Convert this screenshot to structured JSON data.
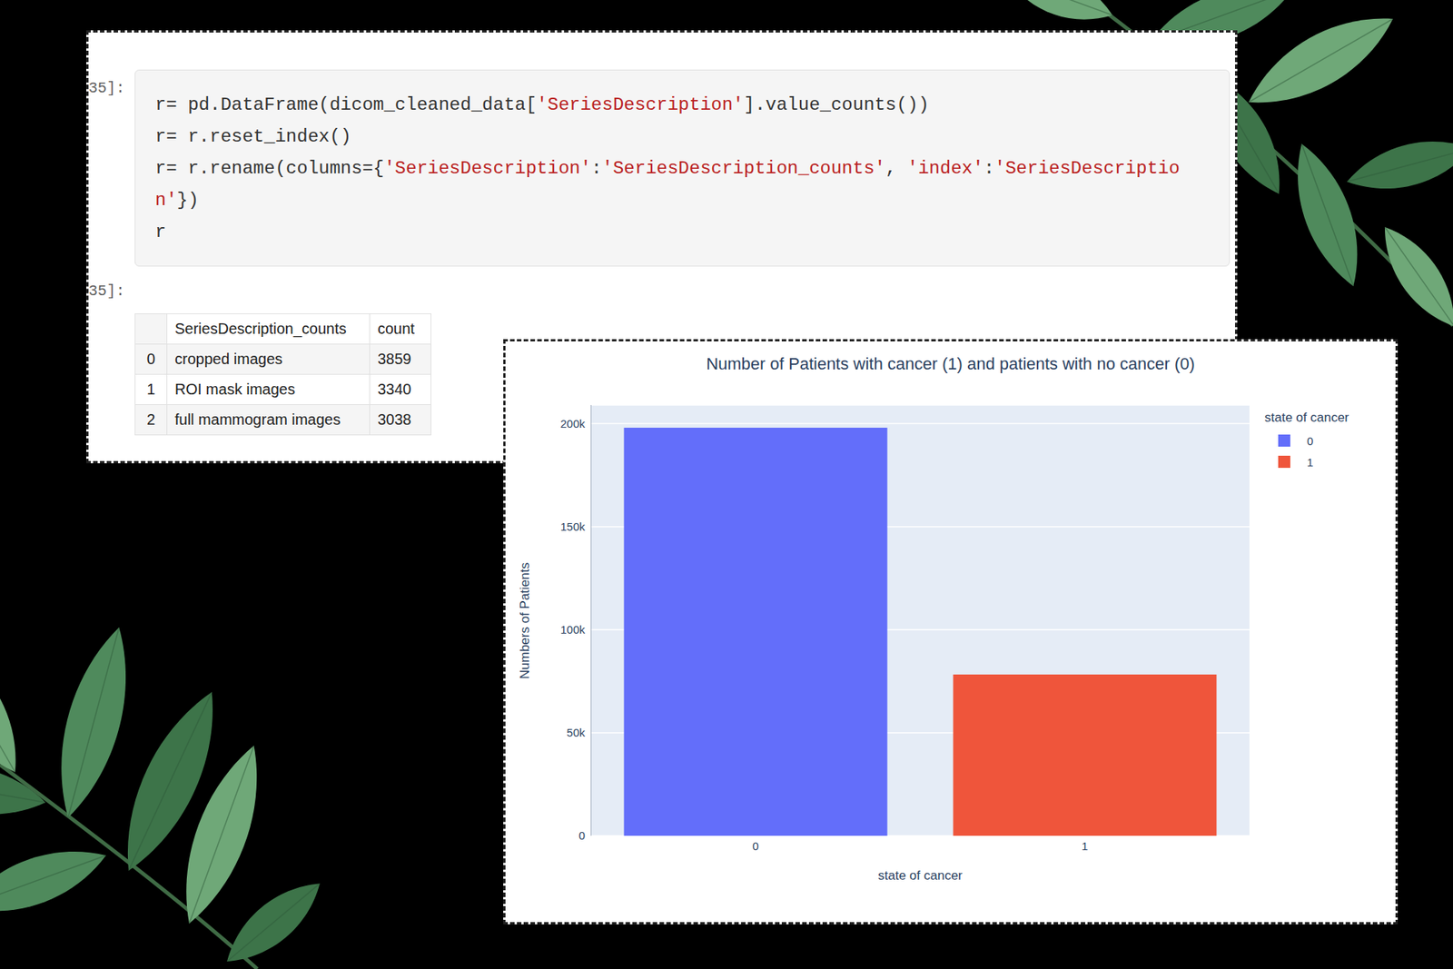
{
  "notebook": {
    "input_prompt": "35]:",
    "code_lines": [
      "r= pd.DataFrame(dicom_cleaned_data['SeriesDescription'].value_counts())",
      "r= r.reset_index()",
      "r= r.rename(columns={'SeriesDescription':'SeriesDescription_counts', 'index':'SeriesDescriptio",
      "n'})",
      "r"
    ],
    "output_prompt": "35]:",
    "table": {
      "columns": [
        "SeriesDescription_counts",
        "count"
      ],
      "rows": [
        [
          0,
          "cropped images",
          3859
        ],
        [
          1,
          "ROI mask images",
          3340
        ],
        [
          2,
          "full mammogram images",
          3038
        ]
      ]
    }
  },
  "chart_data": {
    "type": "bar",
    "title": "Number of Patients with cancer (1) and patients with no cancer (0)",
    "x_label": "state of cancer",
    "y_label": "Numbers of Patients",
    "legend_title": "state of cancer",
    "categories": [
      "0",
      "1"
    ],
    "values": [
      198000,
      78200
    ],
    "colors": [
      "#636efa",
      "#ef553b"
    ],
    "ylim": [
      0,
      209000
    ],
    "yticks": [
      0,
      {
        "value": 50000,
        "label": "50k"
      },
      {
        "value": 100000,
        "label": "100k"
      },
      {
        "value": 150000,
        "label": "150k"
      },
      {
        "value": 200000,
        "label": "200k"
      }
    ],
    "grid": true,
    "legend": "right"
  }
}
